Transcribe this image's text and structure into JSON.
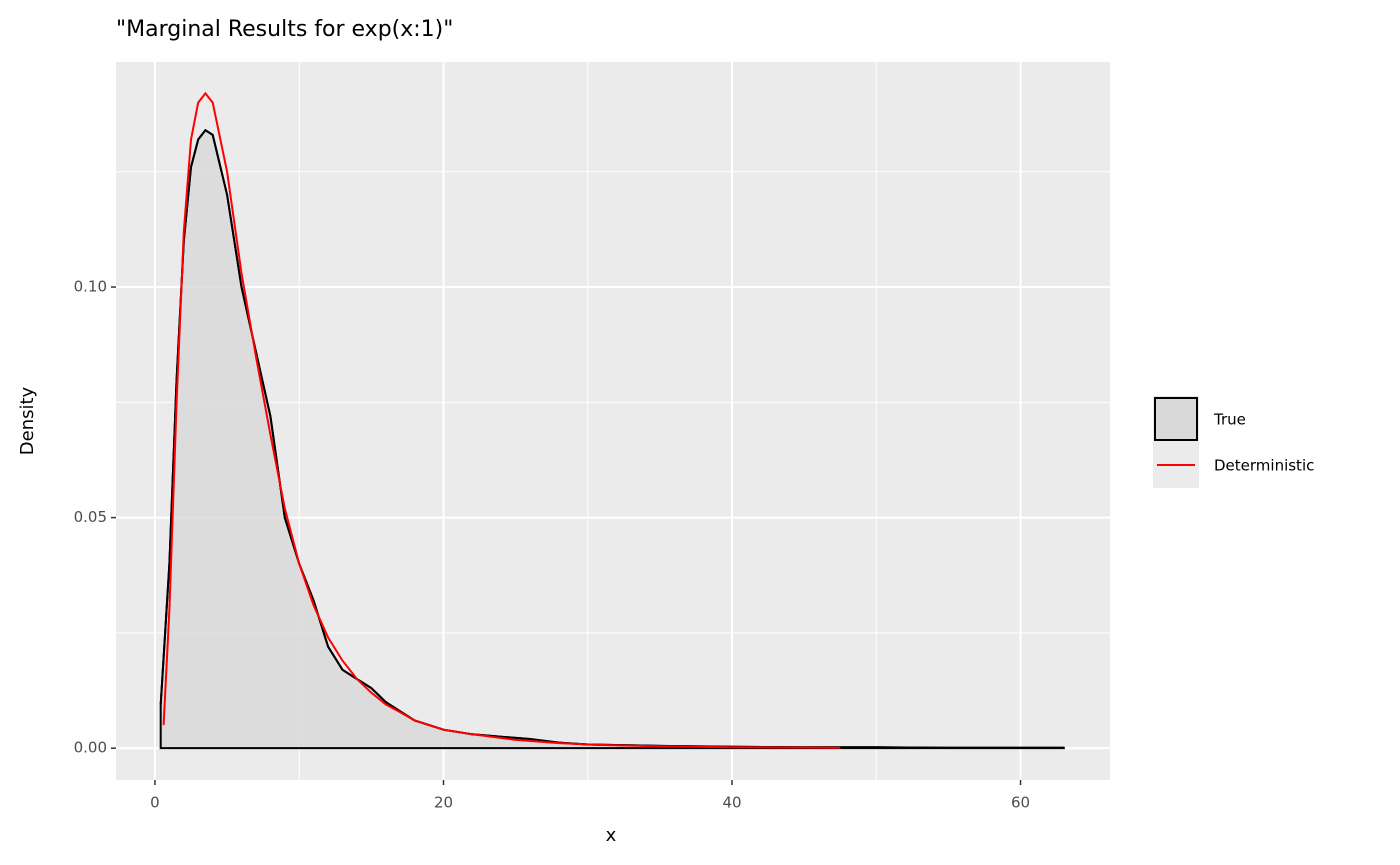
{
  "chart_data": {
    "type": "density",
    "title": "\"Marginal Results for exp(x:1)\"",
    "x_label": "x",
    "y_label": "Density",
    "xlim": [
      -2.7,
      66.2
    ],
    "ylim": [
      -0.0069,
      0.1488
    ],
    "xticks": [
      0,
      20,
      40,
      60
    ],
    "yticks": [
      {
        "value": 0,
        "label": "0.00"
      },
      0.05,
      {
        "value": 0.1,
        "label": "0.10"
      }
    ],
    "x_minor_ticks": [
      10,
      30,
      50
    ],
    "y_minor_ticks": [
      0.025,
      0.075,
      0.125
    ],
    "grid": true,
    "legend_position": "right",
    "series": [
      {
        "name": "True",
        "color": "#000000",
        "fill": "#d9d9d9",
        "x": [
          0.4,
          1,
          1.5,
          2,
          2.5,
          3,
          3.5,
          4,
          5,
          6,
          7,
          8,
          9,
          10,
          11,
          12,
          13,
          14,
          15,
          16,
          17,
          18,
          19,
          20,
          22,
          24,
          26,
          28,
          30,
          35,
          40,
          45,
          50,
          55,
          63
        ],
        "values": [
          0.0095,
          0.04,
          0.08,
          0.11,
          0.126,
          0.132,
          0.134,
          0.133,
          0.12,
          0.1,
          0.086,
          0.072,
          0.05,
          0.04,
          0.032,
          0.022,
          0.017,
          0.015,
          0.013,
          0.01,
          0.008,
          0.006,
          0.005,
          0.004,
          0.003,
          0.0025,
          0.002,
          0.0012,
          0.0008,
          0.0005,
          0.0003,
          0.0002,
          0.0002,
          0.0001,
          0.0001
        ]
      },
      {
        "name": "Deterministic",
        "color": "#ff0000",
        "x": [
          0.6,
          1,
          1.5,
          2,
          2.5,
          3,
          3.5,
          4,
          5,
          6,
          7,
          8,
          9,
          10,
          11,
          12,
          13,
          14,
          15,
          16,
          17,
          18,
          20,
          22,
          25,
          28,
          31,
          35,
          40,
          47.5
        ],
        "values": [
          0.005,
          0.03,
          0.075,
          0.112,
          0.132,
          0.14,
          0.142,
          0.14,
          0.125,
          0.103,
          0.085,
          0.068,
          0.052,
          0.04,
          0.031,
          0.024,
          0.019,
          0.015,
          0.012,
          0.0095,
          0.0078,
          0.006,
          0.004,
          0.003,
          0.0018,
          0.0011,
          0.0007,
          0.0004,
          0.0002,
          0.0001
        ]
      }
    ]
  }
}
